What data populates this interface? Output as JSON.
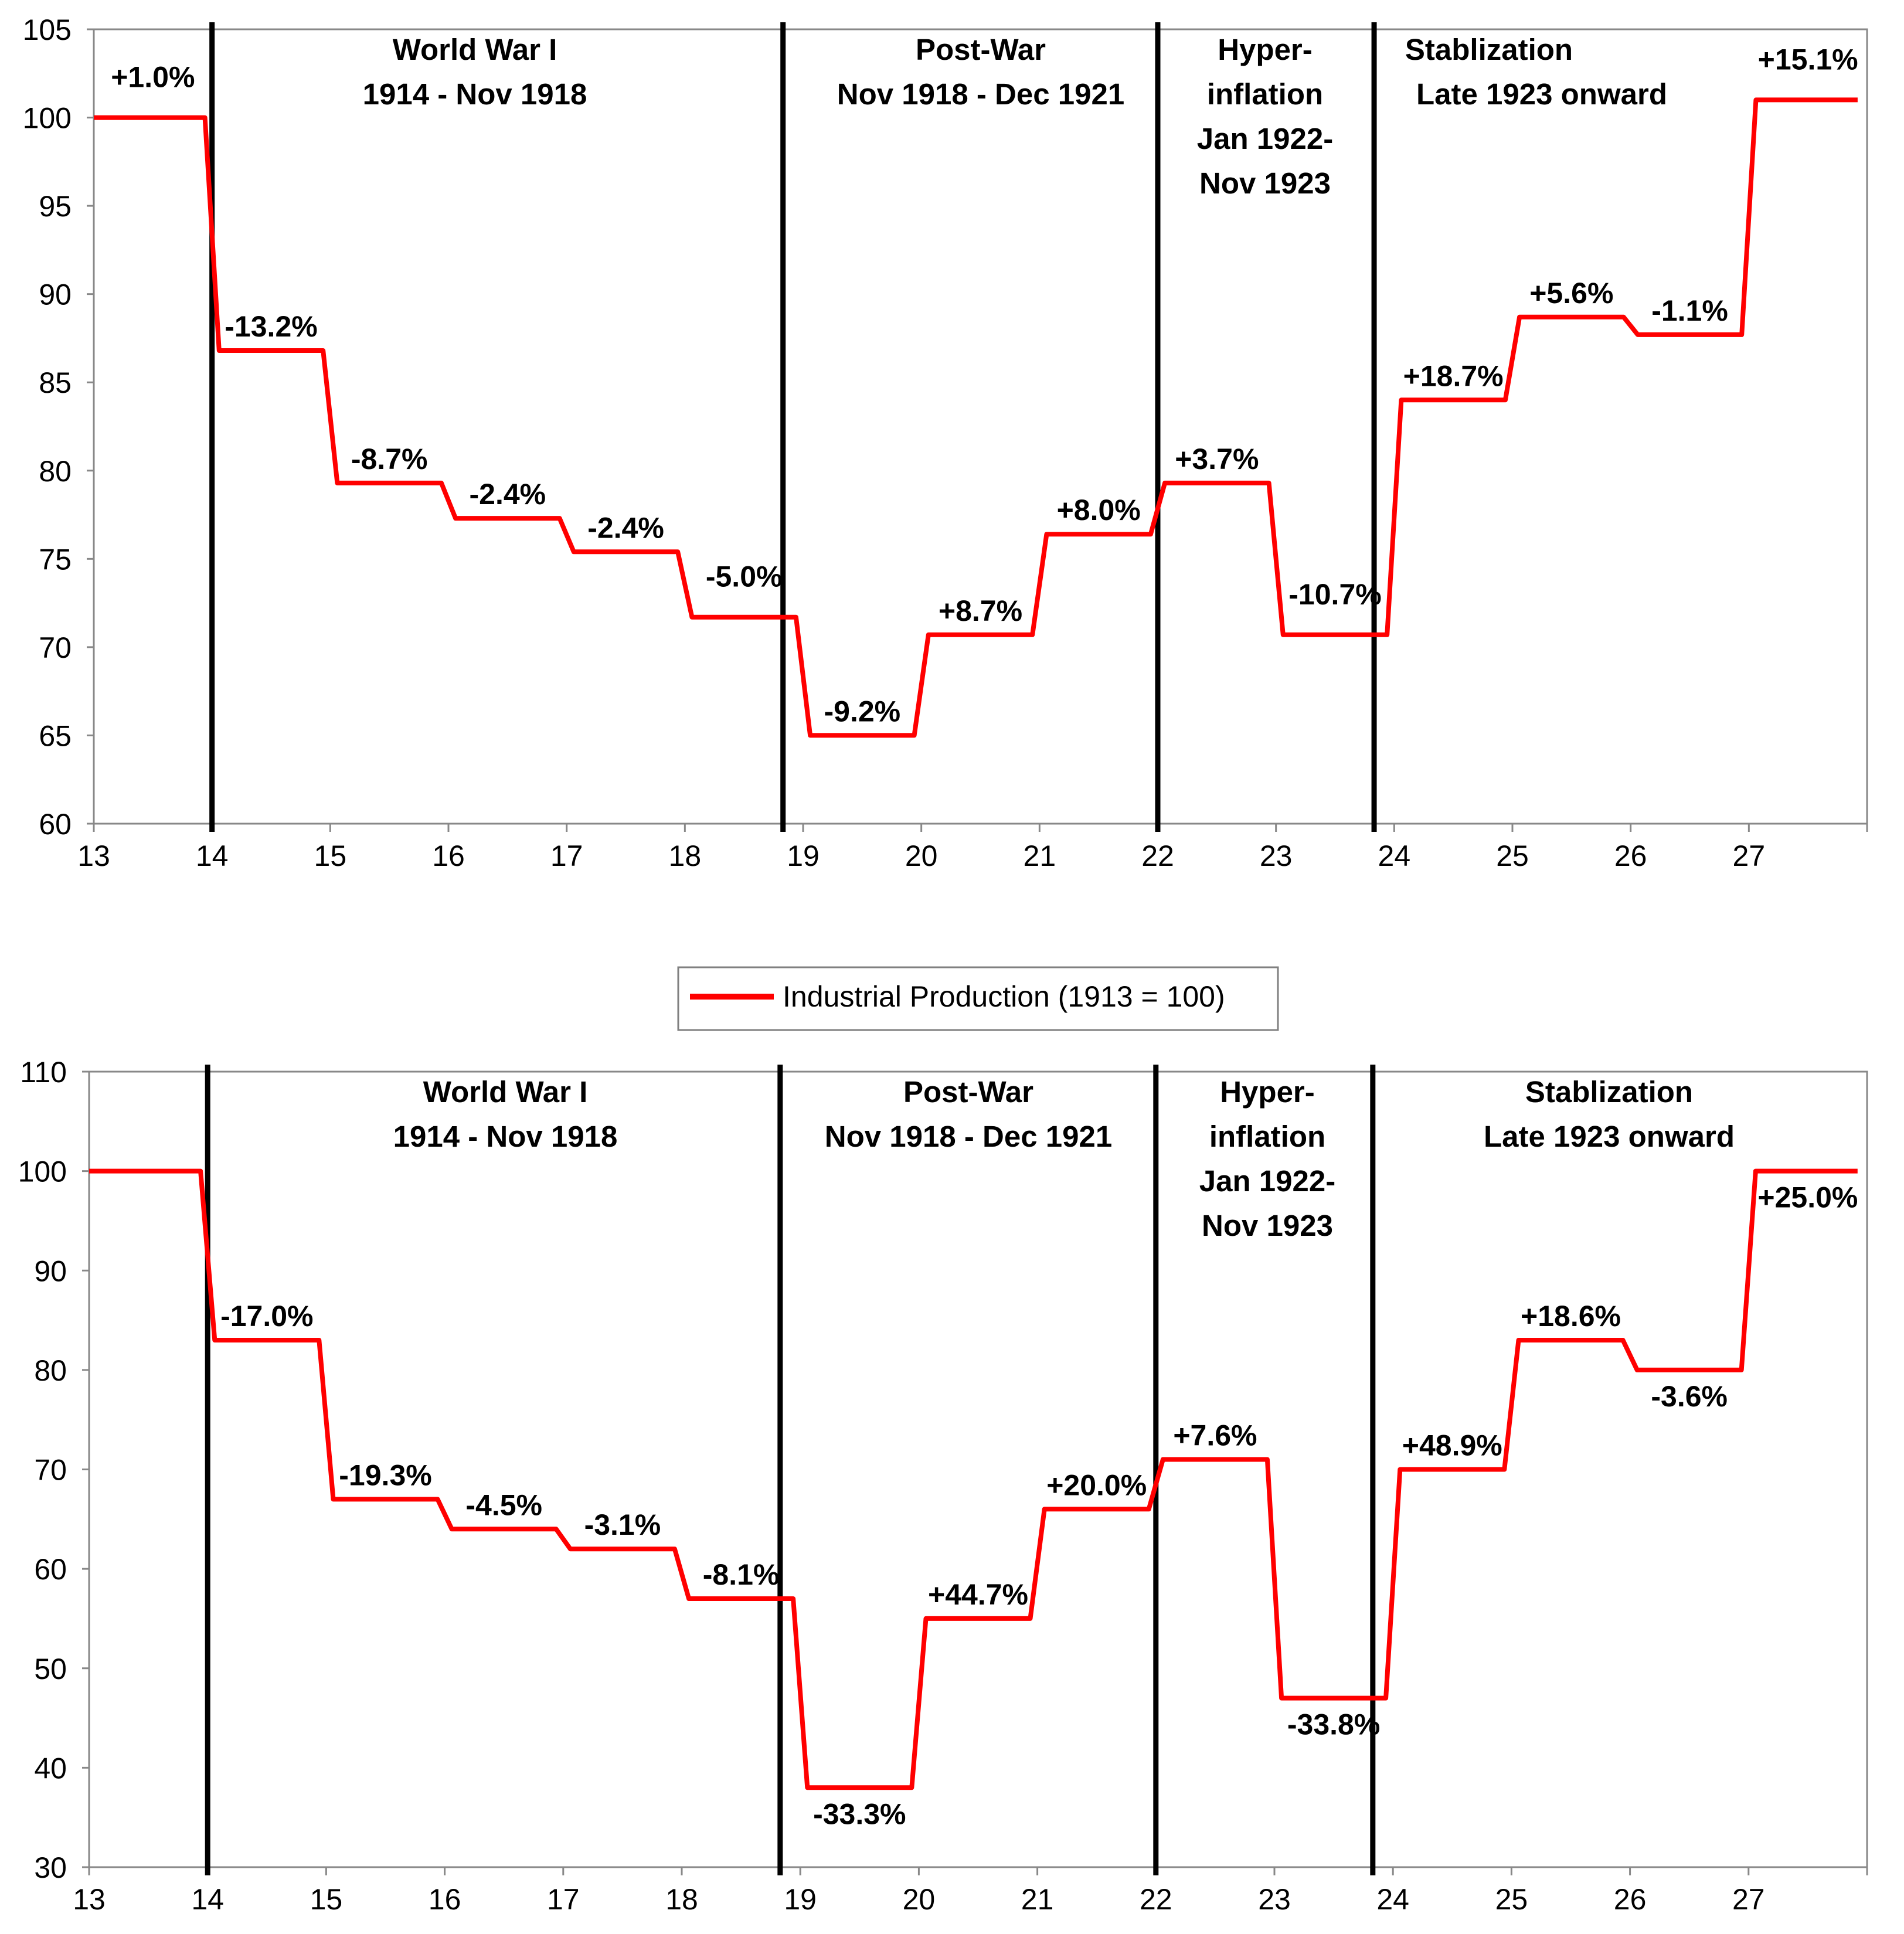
{
  "legend": {
    "label": "Industrial Production (1913 = 100)",
    "color": "#ff0000"
  },
  "colors": {
    "series": "#ff0000",
    "divider": "#000000",
    "axis": "#888888"
  },
  "chart_data": [
    {
      "type": "line",
      "title": "",
      "xlabel": "",
      "ylabel": "",
      "xlim": [
        13,
        28
      ],
      "ylim": [
        60,
        105
      ],
      "xticks": [
        "13",
        "14",
        "15",
        "16",
        "17",
        "18",
        "19",
        "20",
        "21",
        "22",
        "23",
        "24",
        "25",
        "26",
        "27"
      ],
      "yticks": [
        60,
        65,
        70,
        75,
        80,
        85,
        90,
        95,
        100,
        105
      ],
      "dividers": [
        14,
        18.83,
        22,
        23.83
      ],
      "regions": [
        {
          "lines": [
            "World War I",
            "1914 - Nov 1918"
          ]
        },
        {
          "lines": [
            "Post-War",
            "Nov 1918 - Dec 1921"
          ]
        },
        {
          "lines": [
            "Hyper-",
            "inflation",
            "Jan 1922-",
            "Nov 1923"
          ]
        },
        {
          "lines": [
            "Stablization",
            "Late 1923 onward"
          ]
        }
      ],
      "series": [
        {
          "name": "Industrial Production (1913 = 100)",
          "steps": [
            {
              "year": 13,
              "value": 100.0,
              "label": "+1.0%"
            },
            {
              "year": 14,
              "value": 86.8,
              "label": "-13.2%"
            },
            {
              "year": 15,
              "value": 79.3,
              "label": "-8.7%"
            },
            {
              "year": 16,
              "value": 77.3,
              "label": "-2.4%"
            },
            {
              "year": 17,
              "value": 75.4,
              "label": "-2.4%"
            },
            {
              "year": 18,
              "value": 71.7,
              "label": "-5.0%"
            },
            {
              "year": 19,
              "value": 65.0,
              "label": "-9.2%"
            },
            {
              "year": 20,
              "value": 70.7,
              "label": "+8.7%"
            },
            {
              "year": 21,
              "value": 76.4,
              "label": "+8.0%"
            },
            {
              "year": 22,
              "value": 79.3,
              "label": "+3.7%"
            },
            {
              "year": 23,
              "value": 70.7,
              "label": "-10.7%"
            },
            {
              "year": 24,
              "value": 84.0,
              "label": "+18.7%"
            },
            {
              "year": 25,
              "value": 88.7,
              "label": "+5.6%"
            },
            {
              "year": 26,
              "value": 87.7,
              "label": "-1.1%"
            },
            {
              "year": 27,
              "value": 101.0,
              "label": "+15.1%"
            }
          ]
        }
      ]
    },
    {
      "type": "line",
      "title": "",
      "xlabel": "",
      "ylabel": "",
      "xlim": [
        13,
        28
      ],
      "ylim": [
        30,
        110
      ],
      "xticks": [
        "13",
        "14",
        "15",
        "16",
        "17",
        "18",
        "19",
        "20",
        "21",
        "22",
        "23",
        "24",
        "25",
        "26",
        "27"
      ],
      "yticks": [
        30,
        40,
        50,
        60,
        70,
        80,
        90,
        100,
        110
      ],
      "dividers": [
        14,
        18.83,
        22,
        23.83
      ],
      "regions": [
        {
          "lines": [
            "World War I",
            "1914 - Nov 1918"
          ]
        },
        {
          "lines": [
            "Post-War",
            "Nov 1918 - Dec 1921"
          ]
        },
        {
          "lines": [
            "Hyper-",
            "inflation",
            "Jan 1922-",
            "Nov 1923"
          ]
        },
        {
          "lines": [
            "Stablization",
            "Late 1923 onward"
          ]
        }
      ],
      "series": [
        {
          "name": "",
          "steps": [
            {
              "year": 13,
              "value": 100.0,
              "label": ""
            },
            {
              "year": 14,
              "value": 83.0,
              "label": "-17.0%"
            },
            {
              "year": 15,
              "value": 67.0,
              "label": "-19.3%"
            },
            {
              "year": 16,
              "value": 64.0,
              "label": "-4.5%"
            },
            {
              "year": 17,
              "value": 62.0,
              "label": "-3.1%"
            },
            {
              "year": 18,
              "value": 57.0,
              "label": "-8.1%"
            },
            {
              "year": 19,
              "value": 38.0,
              "label": "-33.3%"
            },
            {
              "year": 20,
              "value": 55.0,
              "label": "+44.7%"
            },
            {
              "year": 21,
              "value": 66.0,
              "label": "+20.0%"
            },
            {
              "year": 22,
              "value": 71.0,
              "label": "+7.6%"
            },
            {
              "year": 23,
              "value": 47.0,
              "label": "-33.8%"
            },
            {
              "year": 24,
              "value": 70.0,
              "label": "+48.9%"
            },
            {
              "year": 25,
              "value": 83.0,
              "label": "+18.6%"
            },
            {
              "year": 26,
              "value": 80.0,
              "label": "-3.6%"
            },
            {
              "year": 27,
              "value": 100.0,
              "label": "+25.0%"
            }
          ]
        }
      ]
    }
  ]
}
